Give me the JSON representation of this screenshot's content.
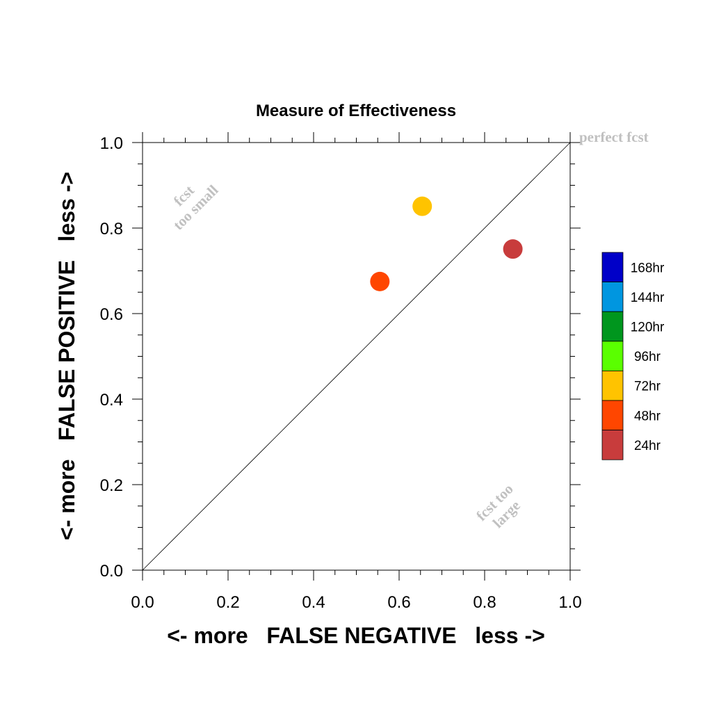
{
  "chart_data": {
    "type": "scatter",
    "title": "Measure of Effectiveness",
    "xlabel": "<- more   FALSE NEGATIVE   less ->",
    "ylabel": "<- more   FALSE POSITIVE   less ->",
    "xlim": [
      0,
      1
    ],
    "ylim": [
      0,
      1
    ],
    "x_ticks": [
      "0.0",
      "0.2",
      "0.4",
      "0.6",
      "0.8",
      "1.0"
    ],
    "y_ticks": [
      "0.0",
      "0.2",
      "0.4",
      "0.6",
      "0.8",
      "1.0"
    ],
    "grid": false,
    "diagonal_line": true,
    "annotations": {
      "perfect": "perfect fcst",
      "small_line1": "fcst",
      "small_line2": "too small",
      "large_line1": "fcst too",
      "large_line2": "large"
    },
    "legend_position": "right",
    "legend": [
      {
        "label": "168hr",
        "color": "#0000c8"
      },
      {
        "label": "144hr",
        "color": "#0096e0"
      },
      {
        "label": "120hr",
        "color": "#00961e"
      },
      {
        "label": "96hr",
        "color": "#5aff00"
      },
      {
        "label": "72hr",
        "color": "#ffc300"
      },
      {
        "label": "48hr",
        "color": "#ff4600"
      },
      {
        "label": "24hr",
        "color": "#c83c3c"
      }
    ],
    "points": [
      {
        "label": "24hr",
        "x": 0.866,
        "y": 0.751,
        "color": "#c83c3c"
      },
      {
        "label": "48hr",
        "x": 0.555,
        "y": 0.675,
        "color": "#ff4600"
      },
      {
        "label": "72hr",
        "x": 0.654,
        "y": 0.851,
        "color": "#ffc300"
      }
    ]
  }
}
